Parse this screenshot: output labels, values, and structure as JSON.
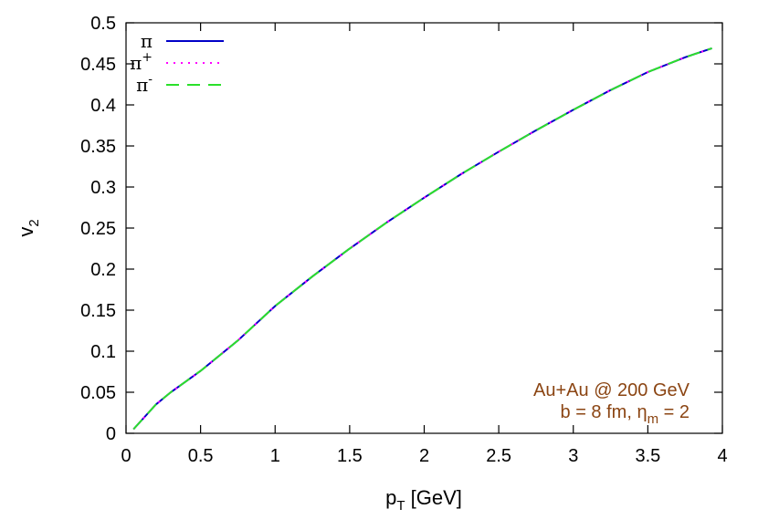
{
  "chart_data": {
    "type": "line",
    "xlabel": "p",
    "xlabel_sub": "T",
    "xlabel_unit": " [GeV]",
    "ylabel": "v",
    "ylabel_sub": "2",
    "xlim": [
      0,
      4
    ],
    "ylim": [
      0,
      0.5
    ],
    "xticks": [
      0,
      0.5,
      1,
      1.5,
      2,
      2.5,
      3,
      3.5,
      4
    ],
    "xtick_labels": [
      "0",
      "0.5",
      "1",
      "1.5",
      "2",
      "2.5",
      "3",
      "3.5",
      "4"
    ],
    "yticks": [
      0,
      0.05,
      0.1,
      0.15,
      0.2,
      0.25,
      0.3,
      0.35,
      0.4,
      0.45,
      0.5
    ],
    "ytick_labels": [
      "0",
      "0.05",
      "0.1",
      "0.15",
      "0.2",
      "0.25",
      "0.3",
      "0.35",
      "0.4",
      "0.45",
      "0.5"
    ],
    "grid": false,
    "legend_position": "top-left",
    "x": [
      0.05,
      0.1,
      0.15,
      0.2,
      0.3,
      0.4,
      0.5,
      0.75,
      1.0,
      1.25,
      1.5,
      1.75,
      2.0,
      2.25,
      2.5,
      2.75,
      3.0,
      3.25,
      3.5,
      3.75,
      3.93
    ],
    "series": [
      {
        "name": "π",
        "sup": "",
        "color": "#0000c8",
        "dash": "solid",
        "values": [
          0.005,
          0.015,
          0.025,
          0.035,
          0.05,
          0.063,
          0.076,
          0.113,
          0.155,
          0.191,
          0.225,
          0.257,
          0.287,
          0.316,
          0.343,
          0.369,
          0.394,
          0.418,
          0.44,
          0.458,
          0.469
        ]
      },
      {
        "name": "π",
        "sup": "+",
        "color": "#ff00ff",
        "dash": "dotted",
        "values": [
          0.005,
          0.015,
          0.025,
          0.035,
          0.05,
          0.063,
          0.076,
          0.113,
          0.155,
          0.191,
          0.225,
          0.257,
          0.287,
          0.316,
          0.343,
          0.369,
          0.394,
          0.418,
          0.44,
          0.458,
          0.469
        ]
      },
      {
        "name": "π",
        "sup": "-",
        "color": "#2ae02a",
        "dash": "dashed",
        "values": [
          0.005,
          0.015,
          0.025,
          0.035,
          0.05,
          0.063,
          0.076,
          0.113,
          0.155,
          0.191,
          0.225,
          0.257,
          0.287,
          0.316,
          0.343,
          0.369,
          0.394,
          0.418,
          0.44,
          0.458,
          0.469
        ]
      }
    ],
    "annotation": {
      "color": "#8b4513",
      "line1": "Au+Au @ 200 GeV",
      "line2_prefix": "b = 8 fm, η",
      "line2_sub": "m",
      "line2_suffix": " = 2"
    }
  }
}
